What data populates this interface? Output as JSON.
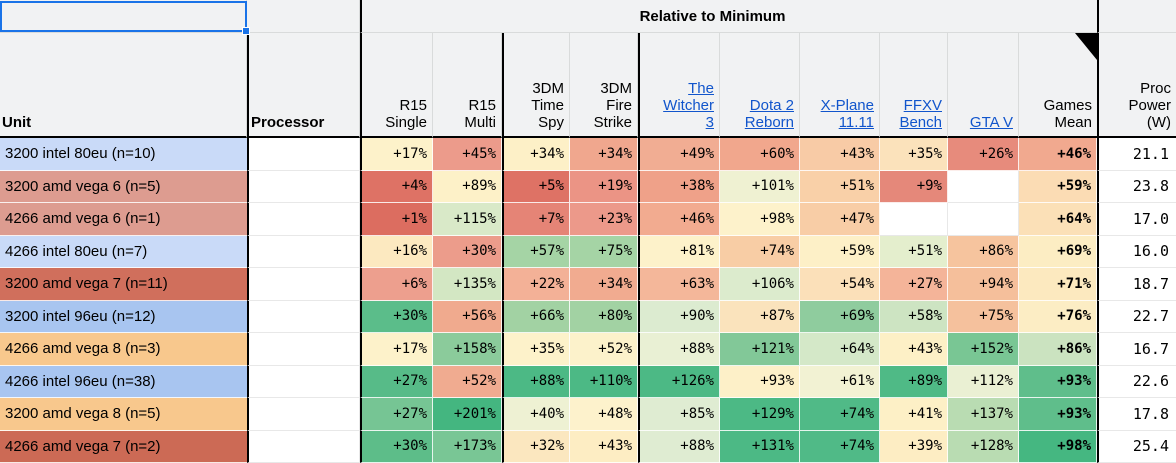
{
  "title": "Relative to Minimum",
  "header": {
    "unit": "Unit",
    "processor": "Processor"
  },
  "columns": [
    {
      "id": "r15_single",
      "label": "R15\nSingle",
      "link": false
    },
    {
      "id": "r15_multi",
      "label": "R15\nMulti",
      "link": false
    },
    {
      "id": "time_spy",
      "label": "3DM\nTime\nSpy",
      "link": false
    },
    {
      "id": "fire_strike",
      "label": "3DM\nFire\nStrike",
      "link": false
    },
    {
      "id": "witcher3",
      "label": "The\nWitcher\n3",
      "link": true
    },
    {
      "id": "dota2",
      "label": "Dota 2\nReborn",
      "link": true
    },
    {
      "id": "xplane",
      "label": "X-Plane\n11.11",
      "link": true
    },
    {
      "id": "ffxv",
      "label": "FFXV\nBench",
      "link": true
    },
    {
      "id": "gtav",
      "label": "GTA V",
      "link": true
    },
    {
      "id": "games_mean",
      "label": "Games\nMean",
      "link": false
    },
    {
      "id": "proc_power",
      "label": "Proc\nPower\n(W)",
      "link": false
    }
  ],
  "accent_colors": {
    "selection": "#1a73e8",
    "link": "#1155cc",
    "header_bg": "#f1f2f3"
  },
  "rows": [
    {
      "unit": "3200 intel 80eu (n=10)",
      "unit_bg": "#c9daf8",
      "processor": "",
      "cells": [
        {
          "v": "+17%",
          "bg": "#fdf2ca"
        },
        {
          "v": "+45%",
          "bg": "#ec9b8b"
        },
        {
          "v": "+34%",
          "bg": "#fdf0c7"
        },
        {
          "v": "+34%",
          "bg": "#f0a78e"
        },
        {
          "v": "+49%",
          "bg": "#f1ad93"
        },
        {
          "v": "+60%",
          "bg": "#f1a78d"
        },
        {
          "v": "+43%",
          "bg": "#f8cba6"
        },
        {
          "v": "+35%",
          "bg": "#fbe2bb"
        },
        {
          "v": "+26%",
          "bg": "#e78b7c"
        },
        {
          "v": "+46%",
          "bg": "#f1a98f"
        }
      ],
      "power": "21.1"
    },
    {
      "unit": "3200 amd vega 6 (n=5)",
      "unit_bg": "#dd9c90",
      "processor": "",
      "cells": [
        {
          "v": "+4%",
          "bg": "#de7265"
        },
        {
          "v": "+89%",
          "bg": "#fdf1c8"
        },
        {
          "v": "+5%",
          "bg": "#de7265"
        },
        {
          "v": "+19%",
          "bg": "#eb9485"
        },
        {
          "v": "+38%",
          "bg": "#efa189"
        },
        {
          "v": "+101%",
          "bg": "#eff1d2"
        },
        {
          "v": "+51%",
          "bg": "#f9d0a8"
        },
        {
          "v": "+9%",
          "bg": "#e5887a"
        },
        {
          "v": "",
          "bg": "#ffffff"
        },
        {
          "v": "+59%",
          "bg": "#fbdcb4"
        }
      ],
      "power": "23.8"
    },
    {
      "unit": "4266 amd vega 6 (n=1)",
      "unit_bg": "#dd9c90",
      "processor": "",
      "cells": [
        {
          "v": "+1%",
          "bg": "#dc6d60"
        },
        {
          "v": "+115%",
          "bg": "#d9e9c8"
        },
        {
          "v": "+7%",
          "bg": "#e58476"
        },
        {
          "v": "+23%",
          "bg": "#ec998a"
        },
        {
          "v": "+46%",
          "bg": "#f2ab90"
        },
        {
          "v": "+98%",
          "bg": "#fdf2cb"
        },
        {
          "v": "+47%",
          "bg": "#f8cda6"
        },
        {
          "v": "",
          "bg": "#ffffff"
        },
        {
          "v": "",
          "bg": "#ffffff"
        },
        {
          "v": "+64%",
          "bg": "#fbe0b7"
        }
      ],
      "power": "17.0"
    },
    {
      "unit": "4266 intel 80eu (n=7)",
      "unit_bg": "#c9daf8",
      "processor": "",
      "cells": [
        {
          "v": "+16%",
          "bg": "#fce9c0"
        },
        {
          "v": "+30%",
          "bg": "#ec9c8b"
        },
        {
          "v": "+57%",
          "bg": "#a5d4a5"
        },
        {
          "v": "+75%",
          "bg": "#a5d4a5"
        },
        {
          "v": "+81%",
          "bg": "#fdf2ca"
        },
        {
          "v": "+74%",
          "bg": "#f8cda5"
        },
        {
          "v": "+59%",
          "bg": "#fdf0c7"
        },
        {
          "v": "+51%",
          "bg": "#e4eecd"
        },
        {
          "v": "+86%",
          "bg": "#f6c49e"
        },
        {
          "v": "+69%",
          "bg": "#fcedc3"
        }
      ],
      "power": "16.0"
    },
    {
      "unit": "3200 amd vega 7 (n=11)",
      "unit_bg": "#d06f5c",
      "processor": "",
      "cells": [
        {
          "v": "+6%",
          "bg": "#ed9f8e"
        },
        {
          "v": "+135%",
          "bg": "#d3e7c3"
        },
        {
          "v": "+22%",
          "bg": "#f3b197"
        },
        {
          "v": "+34%",
          "bg": "#f1ab90"
        },
        {
          "v": "+63%",
          "bg": "#f4b79a"
        },
        {
          "v": "+106%",
          "bg": "#dcebcd"
        },
        {
          "v": "+54%",
          "bg": "#fbe0b9"
        },
        {
          "v": "+27%",
          "bg": "#f4b499"
        },
        {
          "v": "+94%",
          "bg": "#f5bf9b"
        },
        {
          "v": "+71%",
          "bg": "#fce9bf"
        }
      ],
      "power": "18.7"
    },
    {
      "unit": "3200 intel 96eu (n=12)",
      "unit_bg": "#a8c5f0",
      "processor": "",
      "cells": [
        {
          "v": "+30%",
          "bg": "#5bbd8a"
        },
        {
          "v": "+56%",
          "bg": "#f0aa8e"
        },
        {
          "v": "+66%",
          "bg": "#a2d2a3"
        },
        {
          "v": "+80%",
          "bg": "#a2d2a3"
        },
        {
          "v": "+90%",
          "bg": "#dcebd0"
        },
        {
          "v": "+87%",
          "bg": "#fae3bc"
        },
        {
          "v": "+69%",
          "bg": "#8fcc9e"
        },
        {
          "v": "+58%",
          "bg": "#cde4c2"
        },
        {
          "v": "+75%",
          "bg": "#f5c19d"
        },
        {
          "v": "+76%",
          "bg": "#fcedc4"
        }
      ],
      "power": "22.7"
    },
    {
      "unit": "4266 amd vega 8 (n=3)",
      "unit_bg": "#f8c88d",
      "processor": "",
      "cells": [
        {
          "v": "+17%",
          "bg": "#fdf2ca"
        },
        {
          "v": "+158%",
          "bg": "#8bcb9b"
        },
        {
          "v": "+35%",
          "bg": "#fdf2ca"
        },
        {
          "v": "+52%",
          "bg": "#fcf2cb"
        },
        {
          "v": "+88%",
          "bg": "#e9f0d4"
        },
        {
          "v": "+121%",
          "bg": "#82c898"
        },
        {
          "v": "+64%",
          "bg": "#d4e8c8"
        },
        {
          "v": "+43%",
          "bg": "#fdf0c6"
        },
        {
          "v": "+152%",
          "bg": "#79c694"
        },
        {
          "v": "+86%",
          "bg": "#cbe3c0"
        }
      ],
      "power": "16.7"
    },
    {
      "unit": "4266 intel 96eu (n=38)",
      "unit_bg": "#a8c5f0",
      "processor": "",
      "cells": [
        {
          "v": "+27%",
          "bg": "#57bb88"
        },
        {
          "v": "+52%",
          "bg": "#f0ab90"
        },
        {
          "v": "+88%",
          "bg": "#4cb985"
        },
        {
          "v": "+110%",
          "bg": "#4cb985"
        },
        {
          "v": "+126%",
          "bg": "#4cb985"
        },
        {
          "v": "+93%",
          "bg": "#fdf0c8"
        },
        {
          "v": "+61%",
          "bg": "#f2f2d3"
        },
        {
          "v": "+89%",
          "bg": "#4fba86"
        },
        {
          "v": "+112%",
          "bg": "#eaf0d3"
        },
        {
          "v": "+93%",
          "bg": "#5fbe8b"
        }
      ],
      "power": "22.6"
    },
    {
      "unit": "3200 amd vega 8 (n=5)",
      "unit_bg": "#f8c88d",
      "processor": "",
      "cells": [
        {
          "v": "+27%",
          "bg": "#76c594"
        },
        {
          "v": "+201%",
          "bg": "#44b680"
        },
        {
          "v": "+40%",
          "bg": "#eef1d3"
        },
        {
          "v": "+48%",
          "bg": "#fdf2cc"
        },
        {
          "v": "+85%",
          "bg": "#dfecd2"
        },
        {
          "v": "+129%",
          "bg": "#4cb985"
        },
        {
          "v": "+74%",
          "bg": "#50ba87"
        },
        {
          "v": "+41%",
          "bg": "#fdf0c6"
        },
        {
          "v": "+137%",
          "bg": "#b9dcb2"
        },
        {
          "v": "+93%",
          "bg": "#5fbe8b"
        }
      ],
      "power": "17.8"
    },
    {
      "unit": "4266 amd vega 7 (n=2)",
      "unit_bg": "#cc6a55",
      "processor": "",
      "cells": [
        {
          "v": "+30%",
          "bg": "#5dbd89"
        },
        {
          "v": "+173%",
          "bg": "#79c695"
        },
        {
          "v": "+32%",
          "bg": "#fbe7bf"
        },
        {
          "v": "+43%",
          "bg": "#fdedc3"
        },
        {
          "v": "+88%",
          "bg": "#dfecd2"
        },
        {
          "v": "+131%",
          "bg": "#4cb985"
        },
        {
          "v": "+74%",
          "bg": "#50ba87"
        },
        {
          "v": "+39%",
          "bg": "#fdedc3"
        },
        {
          "v": "+128%",
          "bg": "#b9dcb2"
        },
        {
          "v": "+98%",
          "bg": "#45b781"
        }
      ],
      "power": "25.4"
    }
  ]
}
